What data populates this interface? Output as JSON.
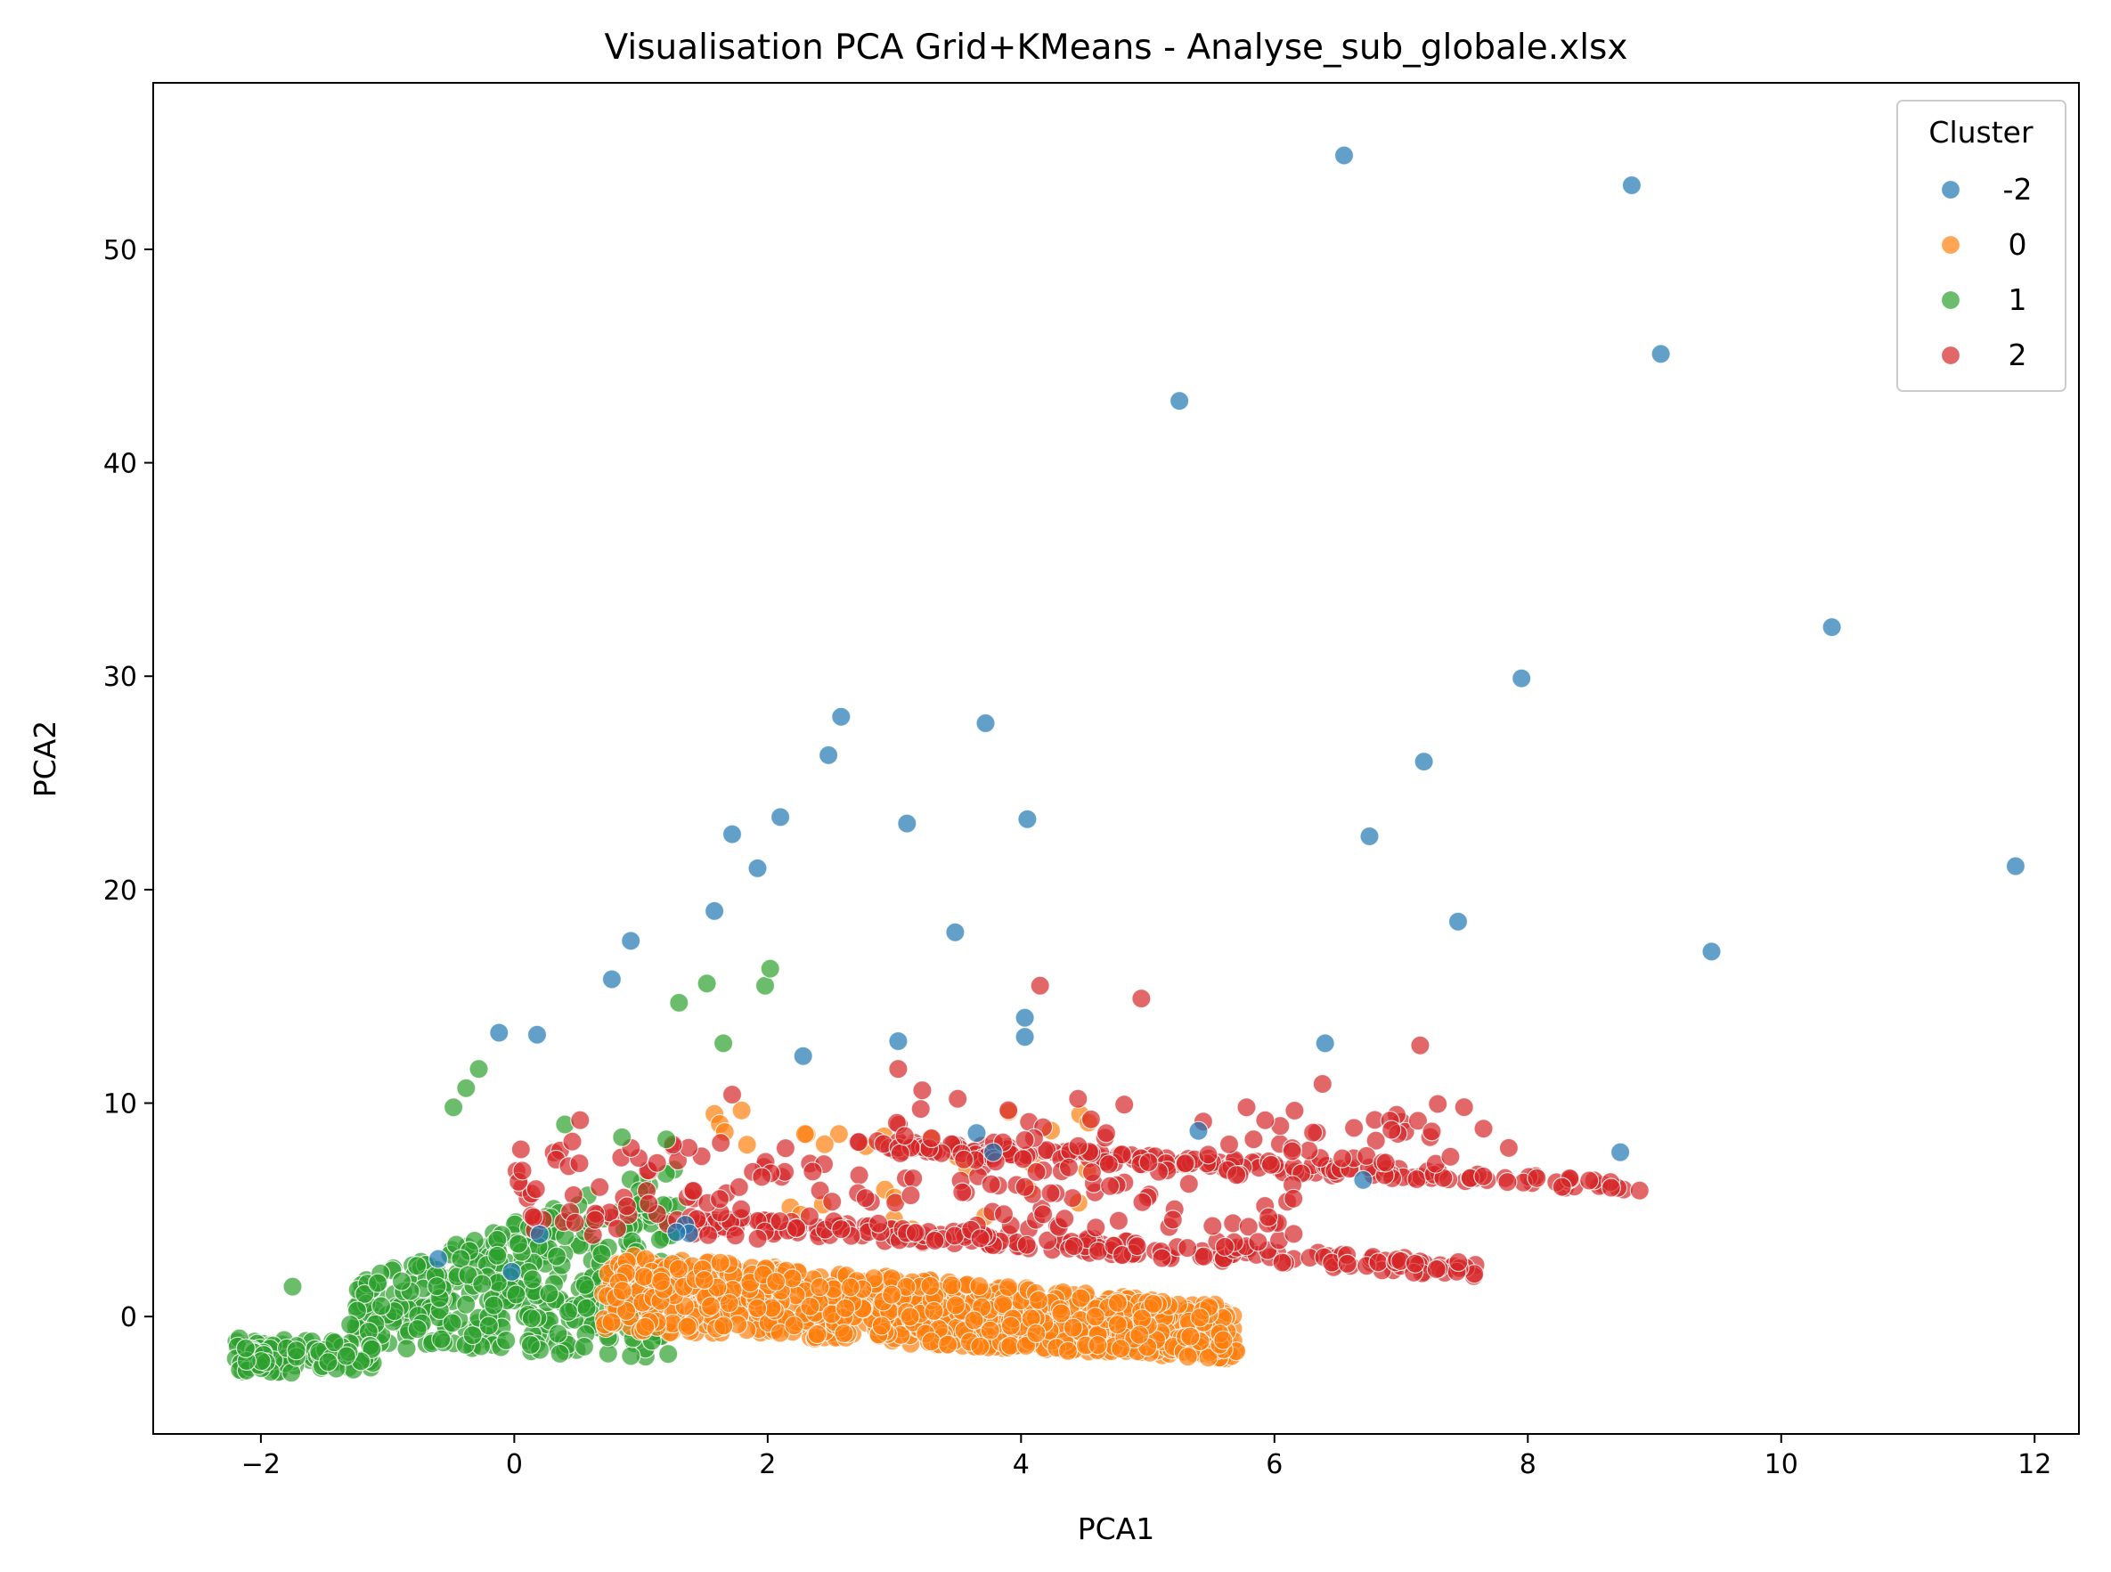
{
  "chart_data": {
    "type": "scatter",
    "title": "Visualisation PCA Grid+KMeans - Analyse_sub_globale.xlsx",
    "xlabel": "PCA1",
    "ylabel": "PCA2",
    "xlim": [
      -2.85,
      12.35
    ],
    "ylim": [
      -5.5,
      57.8
    ],
    "xticks": [
      -2,
      0,
      2,
      4,
      6,
      8,
      10,
      12
    ],
    "xtick_labels": [
      "−2",
      "0",
      "2",
      "4",
      "6",
      "8",
      "10",
      "12"
    ],
    "yticks": [
      0,
      10,
      20,
      30,
      40,
      50
    ],
    "ytick_labels": [
      "0",
      "10",
      "20",
      "30",
      "40",
      "50"
    ],
    "grid": false,
    "legend": {
      "title": "Cluster",
      "placement": "top-right"
    },
    "series": [
      {
        "name": "-2",
        "color": "#1f77b4",
        "points": [
          [
            6.55,
            54.4
          ],
          [
            8.82,
            53.0
          ],
          [
            9.05,
            45.1
          ],
          [
            5.25,
            42.9
          ],
          [
            10.4,
            32.3
          ],
          [
            7.95,
            29.9
          ],
          [
            2.58,
            28.1
          ],
          [
            3.72,
            27.8
          ],
          [
            2.48,
            26.3
          ],
          [
            7.18,
            26.0
          ],
          [
            2.1,
            23.4
          ],
          [
            4.05,
            23.3
          ],
          [
            1.72,
            22.6
          ],
          [
            3.1,
            23.1
          ],
          [
            6.75,
            22.5
          ],
          [
            11.85,
            21.1
          ],
          [
            1.92,
            21.0
          ],
          [
            1.58,
            19.0
          ],
          [
            7.45,
            18.5
          ],
          [
            3.48,
            18.0
          ],
          [
            0.92,
            17.6
          ],
          [
            9.45,
            17.1
          ],
          [
            0.77,
            15.8
          ],
          [
            4.03,
            14.0
          ],
          [
            -0.12,
            13.3
          ],
          [
            0.18,
            13.2
          ],
          [
            4.03,
            13.1
          ],
          [
            3.03,
            12.9
          ],
          [
            6.4,
            12.8
          ],
          [
            2.28,
            12.2
          ],
          [
            8.73,
            7.7
          ],
          [
            5.4,
            8.7
          ],
          [
            3.65,
            8.6
          ],
          [
            3.78,
            7.7
          ],
          [
            6.7,
            6.4
          ],
          [
            1.35,
            4.3
          ],
          [
            1.38,
            3.9
          ],
          [
            1.28,
            3.95
          ],
          [
            0.2,
            3.85
          ],
          [
            -0.6,
            2.7
          ],
          [
            -0.02,
            2.1
          ]
        ]
      },
      {
        "name": "0",
        "color": "#ff7f0e",
        "points": []
      },
      {
        "name": "1",
        "color": "#2ca02c",
        "points": [
          [
            -1.75,
            1.4
          ],
          [
            -0.85,
            -1.5
          ],
          [
            -0.48,
            9.8
          ],
          [
            -0.38,
            10.7
          ],
          [
            -0.28,
            11.6
          ],
          [
            1.3,
            14.7
          ],
          [
            1.52,
            15.6
          ],
          [
            1.98,
            15.5
          ],
          [
            2.02,
            16.3
          ],
          [
            1.65,
            12.8
          ],
          [
            0.4,
            9.0
          ],
          [
            0.85,
            8.4
          ],
          [
            1.2,
            8.3
          ]
        ]
      },
      {
        "name": "2",
        "color": "#d62728",
        "points": [
          [
            4.15,
            15.5
          ],
          [
            4.95,
            14.9
          ],
          [
            7.15,
            12.7
          ],
          [
            3.03,
            11.6
          ],
          [
            3.22,
            10.6
          ],
          [
            6.38,
            10.9
          ],
          [
            1.72,
            10.4
          ],
          [
            0.52,
            9.2
          ],
          [
            5.78,
            9.8
          ],
          [
            7.65,
            8.8
          ],
          [
            7.85,
            7.9
          ],
          [
            3.5,
            10.2
          ],
          [
            4.45,
            10.2
          ]
        ]
      }
    ]
  }
}
